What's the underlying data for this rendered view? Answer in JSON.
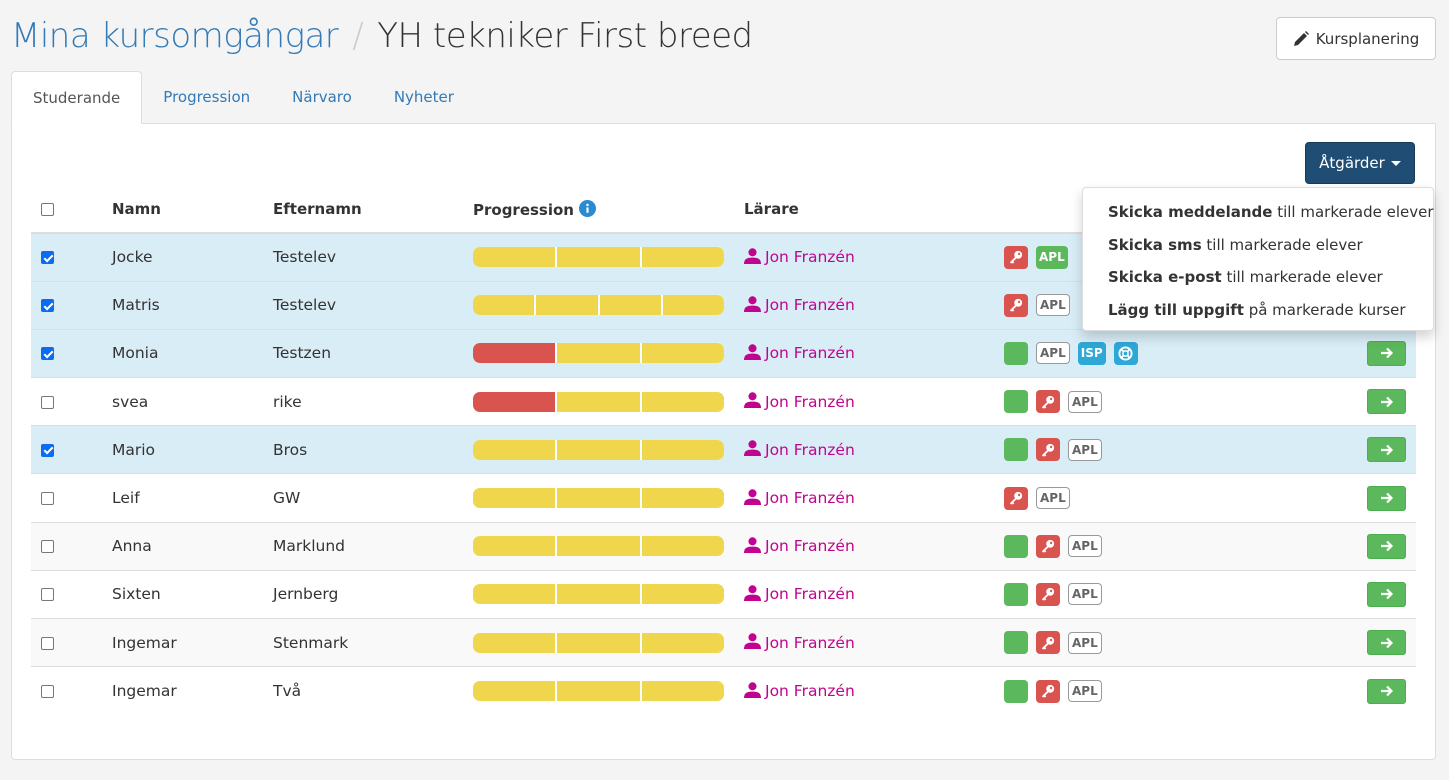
{
  "header": {
    "breadcrumb": "Mina kursomgångar",
    "separator": "/",
    "current": "YH tekniker First breed",
    "kursplanering": "Kursplanering"
  },
  "tabs": [
    {
      "label": "Studerande",
      "active": true
    },
    {
      "label": "Progression"
    },
    {
      "label": "Närvaro"
    },
    {
      "label": "Nyheter"
    }
  ],
  "actions": {
    "label": "Åtgärder",
    "menu": [
      {
        "bold": "Skicka meddelande",
        "rest": " till markerade elever"
      },
      {
        "bold": "Skicka sms",
        "rest": " till markerade elever"
      },
      {
        "bold": "Skicka e-post",
        "rest": " till markerade elever"
      },
      {
        "bold": "Lägg till uppgift",
        "rest": " på markerade kurser"
      }
    ]
  },
  "columns": {
    "name": "Namn",
    "surname": "Efternamn",
    "progression": "Progression",
    "teacher": "Lärare"
  },
  "colors": {
    "yellow": "#f0d64c",
    "red": "#d9534f",
    "green": "#5cb85c",
    "teacher": "#c0048f",
    "primary": "#204d74"
  },
  "rows": [
    {
      "checked": true,
      "name": "Jocke",
      "surname": "Testelev",
      "progress": [
        "y",
        "y",
        "y"
      ],
      "teacher": "Jon Franzén",
      "badges": [
        "key",
        "apl-green"
      ]
    },
    {
      "checked": true,
      "name": "Matris",
      "surname": "Testelev",
      "progress": [
        "y",
        "y",
        "y",
        "y"
      ],
      "teacher": "Jon Franzén",
      "badges": [
        "key",
        "apl"
      ]
    },
    {
      "checked": true,
      "name": "Monia",
      "surname": "Testzen",
      "progress": [
        "r",
        "y",
        "y"
      ],
      "teacher": "Jon Franzén",
      "badges": [
        "green",
        "apl",
        "isp",
        "lifebuoy"
      ]
    },
    {
      "checked": false,
      "name": "svea",
      "surname": "rike",
      "progress": [
        "r",
        "y",
        "y"
      ],
      "teacher": "Jon Franzén",
      "badges": [
        "green",
        "key",
        "apl"
      ]
    },
    {
      "checked": true,
      "name": "Mario",
      "surname": "Bros",
      "progress": [
        "y",
        "y",
        "y"
      ],
      "teacher": "Jon Franzén",
      "badges": [
        "green",
        "key",
        "apl"
      ]
    },
    {
      "checked": false,
      "name": "Leif",
      "surname": "GW",
      "progress": [
        "y",
        "y",
        "y"
      ],
      "teacher": "Jon Franzén",
      "badges": [
        "key",
        "apl"
      ]
    },
    {
      "checked": false,
      "name": "Anna",
      "surname": "Marklund",
      "progress": [
        "y",
        "y",
        "y"
      ],
      "teacher": "Jon Franzén",
      "badges": [
        "green",
        "key",
        "apl"
      ]
    },
    {
      "checked": false,
      "name": "Sixten",
      "surname": "Jernberg",
      "progress": [
        "y",
        "y",
        "y"
      ],
      "teacher": "Jon Franzén",
      "badges": [
        "green",
        "key",
        "apl"
      ]
    },
    {
      "checked": false,
      "name": "Ingemar",
      "surname": "Stenmark",
      "progress": [
        "y",
        "y",
        "y"
      ],
      "teacher": "Jon Franzén",
      "badges": [
        "green",
        "key",
        "apl"
      ]
    },
    {
      "checked": false,
      "name": "Ingemar",
      "surname": "Två",
      "progress": [
        "y",
        "y",
        "y"
      ],
      "teacher": "Jon Franzén",
      "badges": [
        "green",
        "key",
        "apl"
      ]
    }
  ],
  "badge_labels": {
    "apl": "APL",
    "isp": "ISP"
  }
}
